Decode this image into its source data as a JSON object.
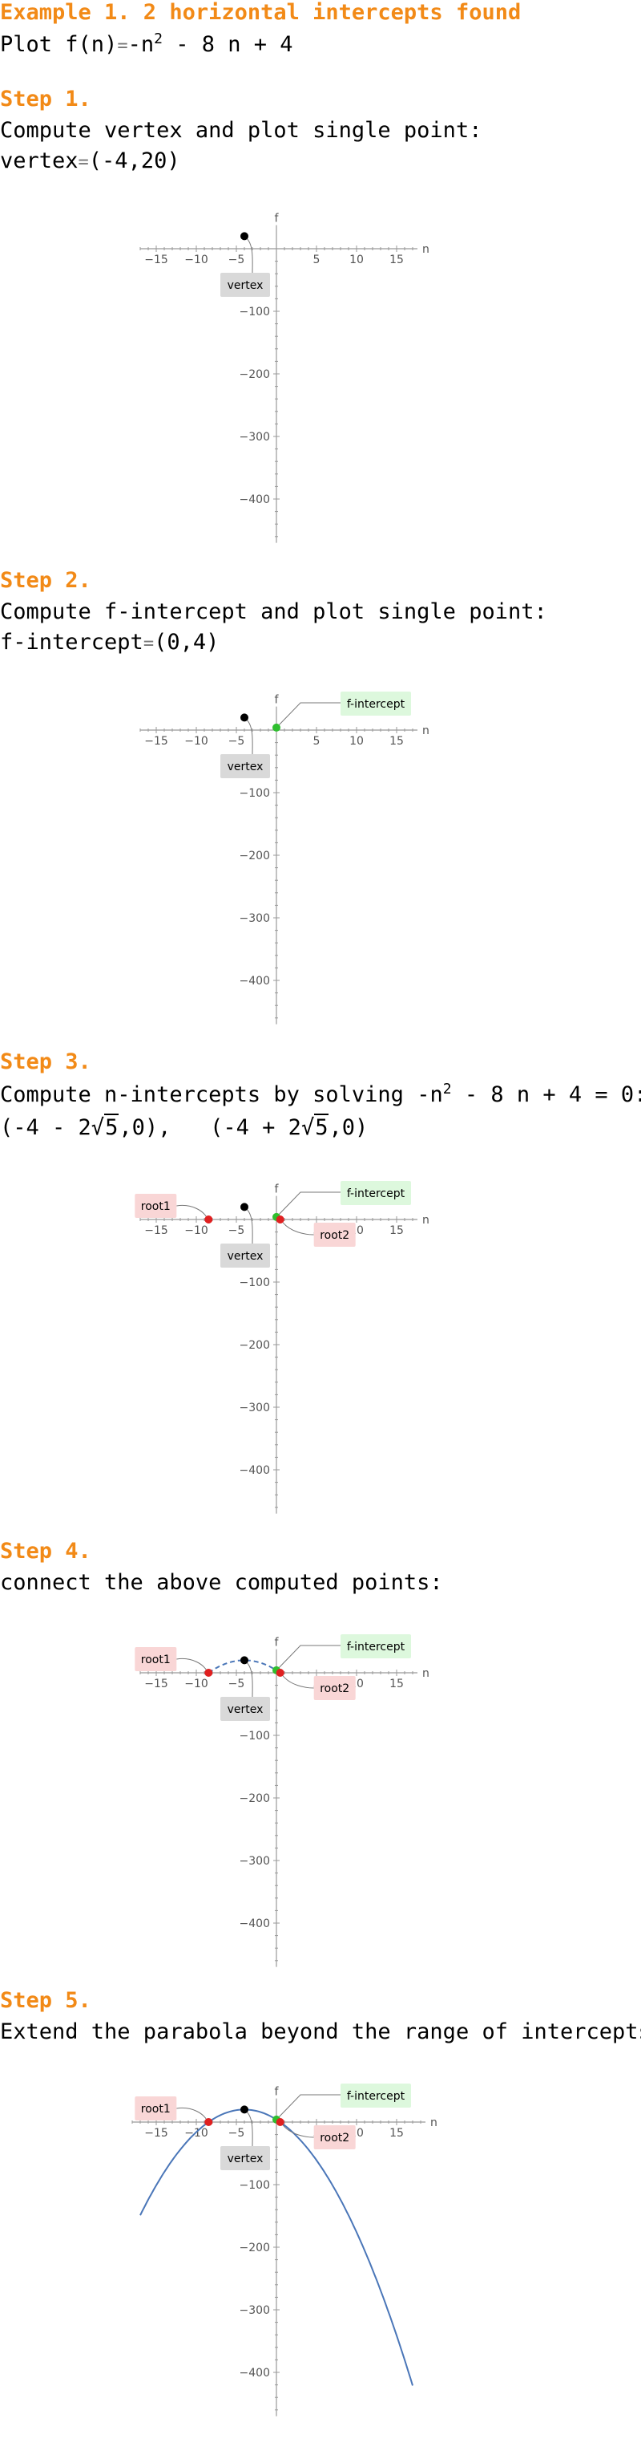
{
  "title": "Example 1. 2 horizontal intercepts found",
  "plot_line": {
    "prefix": "Plot",
    "function": "f(n)",
    "equals": "=",
    "expr_a": "-n",
    "exp": "2",
    "expr_b": "- 8 n + 4"
  },
  "steps": [
    {
      "label": "Step 1.",
      "line1": "Compute vertex and plot single point:",
      "line2_key": "vertex",
      "line2_eq": "=",
      "line2_val": "(-4,20)"
    },
    {
      "label": "Step 2.",
      "line1": "Compute f-intercept and plot single point:",
      "line2_key": "f-intercept",
      "line2_eq": "=",
      "line2_val": "(0,4)"
    },
    {
      "label": "Step 3.",
      "line1_a": "Compute n-intercepts by solving",
      "line1_b": "-n",
      "line1_exp": "2",
      "line1_c": "- 8 n + 4 = 0:",
      "root_a_pre": "(-4 - 2",
      "root_a_rad": "5",
      "root_a_post": ",0),",
      "root_b_pre": "(-4 + 2",
      "root_b_rad": "5",
      "root_b_post": ",0)"
    },
    {
      "label": "Step 4.",
      "line1": "connect the above computed points:"
    },
    {
      "label": "Step 5.",
      "line1": "Extend the parabola beyond the range of intercepts"
    }
  ],
  "callouts": {
    "vertex": "vertex",
    "f_intercept": "f-intercept",
    "root1": "root1",
    "root2": "root2"
  },
  "colors": {
    "title": "#F28A17",
    "vertex_point": "#000000",
    "f_intercept_point": "#2FBF2F",
    "root_point": "#E02020",
    "curve": "#4A76B8",
    "vertex_box": "#D9D9D9",
    "f_intercept_box": "#DDF8DD",
    "root_box": "#F9D6D6"
  },
  "chart_data": [
    {
      "type": "scatter",
      "xlabel": "n",
      "ylabel": "f",
      "xlim": [
        -17,
        17
      ],
      "ylim": [
        -470,
        30
      ],
      "xticks": [
        -15,
        -10,
        -5,
        5,
        10,
        15
      ],
      "yticks": [
        -100,
        -200,
        -300,
        -400
      ],
      "points": [
        {
          "name": "vertex",
          "x": -4,
          "y": 20
        }
      ],
      "curve": "none"
    },
    {
      "type": "scatter",
      "xlabel": "n",
      "ylabel": "f",
      "xlim": [
        -17,
        17
      ],
      "ylim": [
        -470,
        30
      ],
      "xticks": [
        -15,
        -10,
        -5,
        5,
        10,
        15
      ],
      "yticks": [
        -100,
        -200,
        -300,
        -400
      ],
      "points": [
        {
          "name": "vertex",
          "x": -4,
          "y": 20
        },
        {
          "name": "f-intercept",
          "x": 0,
          "y": 4
        }
      ],
      "curve": "none"
    },
    {
      "type": "scatter",
      "xlabel": "n",
      "ylabel": "f",
      "xlim": [
        -17,
        17
      ],
      "ylim": [
        -470,
        30
      ],
      "xticks": [
        -15,
        -10,
        -5,
        5,
        10,
        15
      ],
      "yticks": [
        -100,
        -200,
        -300,
        -400
      ],
      "points": [
        {
          "name": "vertex",
          "x": -4,
          "y": 20
        },
        {
          "name": "f-intercept",
          "x": 0,
          "y": 4
        },
        {
          "name": "root1",
          "x": -8.47,
          "y": 0
        },
        {
          "name": "root2",
          "x": 0.47,
          "y": 0
        }
      ],
      "curve": "none"
    },
    {
      "type": "line",
      "xlabel": "n",
      "ylabel": "f",
      "xlim": [
        -17,
        17
      ],
      "ylim": [
        -470,
        30
      ],
      "xticks": [
        -15,
        -10,
        -5,
        5,
        10,
        15
      ],
      "yticks": [
        -100,
        -200,
        -300,
        -400
      ],
      "points": [
        {
          "name": "vertex",
          "x": -4,
          "y": 20
        },
        {
          "name": "f-intercept",
          "x": 0,
          "y": 4
        },
        {
          "name": "root1",
          "x": -8.47,
          "y": 0
        },
        {
          "name": "root2",
          "x": 0.47,
          "y": 0
        }
      ],
      "curve": "dashed",
      "curve_range": [
        -8.47,
        0.47
      ]
    },
    {
      "type": "line",
      "xlabel": "n",
      "ylabel": "f",
      "xlim": [
        -18,
        18
      ],
      "ylim": [
        -470,
        30
      ],
      "xticks": [
        -15,
        -10,
        -5,
        5,
        10,
        15
      ],
      "yticks": [
        -100,
        -200,
        -300,
        -400
      ],
      "points": [
        {
          "name": "vertex",
          "x": -4,
          "y": 20
        },
        {
          "name": "f-intercept",
          "x": 0,
          "y": 4
        },
        {
          "name": "root1",
          "x": -8.47,
          "y": 0
        },
        {
          "name": "root2",
          "x": 0.47,
          "y": 0
        }
      ],
      "curve": "solid",
      "curve_range": [
        -17,
        17
      ]
    }
  ]
}
